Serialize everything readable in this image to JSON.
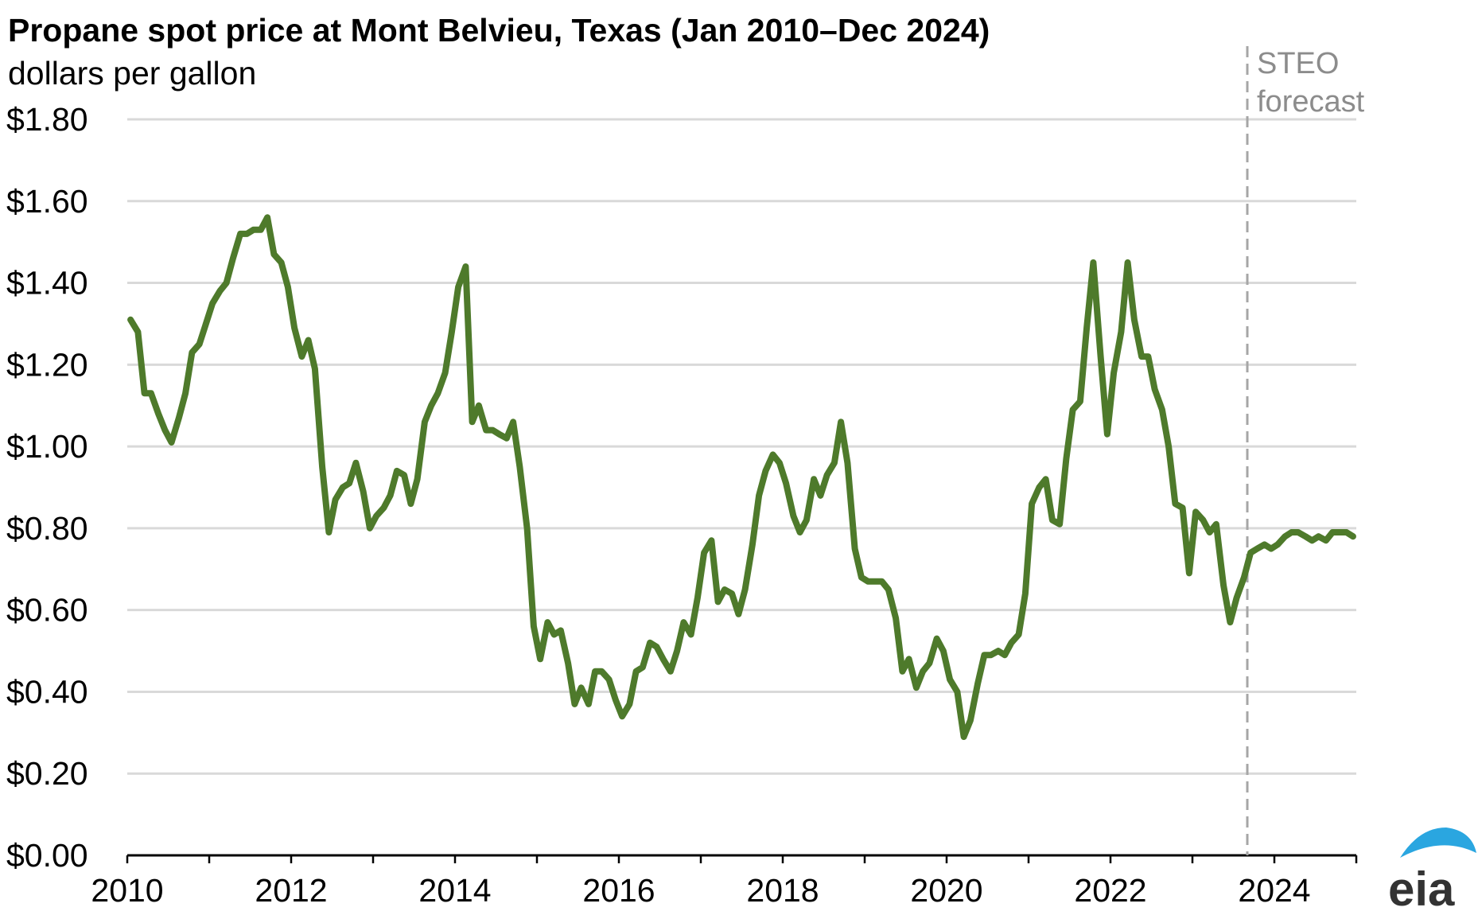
{
  "chart_data": {
    "type": "line",
    "title": "Propane spot price at Mont Belvieu, Texas (Jan 2010–Dec 2024)",
    "subtitle": "dollars per gallon",
    "x_range": [
      2010.0,
      2025.0
    ],
    "x_ticks": [
      2010,
      2012,
      2014,
      2016,
      2018,
      2020,
      2022,
      2024
    ],
    "x_tick_labels": [
      "2010",
      "2012",
      "2014",
      "2016",
      "2018",
      "2020",
      "2022",
      "2024"
    ],
    "ylim": [
      0,
      1.8
    ],
    "y_ticks": [
      0,
      0.2,
      0.4,
      0.6,
      0.8,
      1.0,
      1.2,
      1.4,
      1.6,
      1.8
    ],
    "y_tick_labels": [
      "$0.00",
      "$0.20",
      "$0.40",
      "$0.60",
      "$0.80",
      "$1.00",
      "$1.20",
      "$1.40",
      "$1.60",
      "$1.80"
    ],
    "grid": "horizontal",
    "forecast_start": 2023.67,
    "forecast_label": [
      "STEO",
      "forecast"
    ],
    "series": [
      {
        "color": "#4e7a2b",
        "x": [
          2010.04,
          2010.13,
          2010.21,
          2010.29,
          2010.38,
          2010.46,
          2010.54,
          2010.63,
          2010.71,
          2010.79,
          2010.88,
          2010.96,
          2011.04,
          2011.13,
          2011.21,
          2011.29,
          2011.38,
          2011.46,
          2011.54,
          2011.63,
          2011.71,
          2011.79,
          2011.88,
          2011.96,
          2012.04,
          2012.13,
          2012.21,
          2012.29,
          2012.38,
          2012.46,
          2012.54,
          2012.63,
          2012.71,
          2012.79,
          2012.88,
          2012.96,
          2013.04,
          2013.13,
          2013.21,
          2013.29,
          2013.38,
          2013.46,
          2013.54,
          2013.63,
          2013.71,
          2013.79,
          2013.88,
          2013.96,
          2014.04,
          2014.13,
          2014.21,
          2014.29,
          2014.38,
          2014.46,
          2014.54,
          2014.63,
          2014.71,
          2014.79,
          2014.88,
          2014.96,
          2015.04,
          2015.13,
          2015.21,
          2015.29,
          2015.38,
          2015.46,
          2015.54,
          2015.63,
          2015.71,
          2015.79,
          2015.88,
          2015.96,
          2016.04,
          2016.13,
          2016.21,
          2016.29,
          2016.38,
          2016.46,
          2016.54,
          2016.63,
          2016.71,
          2016.79,
          2016.88,
          2016.96,
          2017.04,
          2017.13,
          2017.21,
          2017.29,
          2017.38,
          2017.46,
          2017.54,
          2017.63,
          2017.71,
          2017.79,
          2017.88,
          2017.96,
          2018.04,
          2018.13,
          2018.21,
          2018.29,
          2018.38,
          2018.46,
          2018.54,
          2018.63,
          2018.71,
          2018.79,
          2018.88,
          2018.96,
          2019.04,
          2019.13,
          2019.21,
          2019.29,
          2019.38,
          2019.46,
          2019.54,
          2019.63,
          2019.71,
          2019.79,
          2019.88,
          2019.96,
          2020.04,
          2020.13,
          2020.21,
          2020.29,
          2020.38,
          2020.46,
          2020.54,
          2020.63,
          2020.71,
          2020.79,
          2020.88,
          2020.96,
          2021.04,
          2021.13,
          2021.21,
          2021.29,
          2021.38,
          2021.46,
          2021.54,
          2021.63,
          2021.71,
          2021.79,
          2021.88,
          2021.96,
          2022.04,
          2022.13,
          2022.21,
          2022.29,
          2022.38,
          2022.46,
          2022.54,
          2022.63,
          2022.71,
          2022.79,
          2022.88,
          2022.96,
          2023.04,
          2023.13,
          2023.21,
          2023.29,
          2023.38,
          2023.46,
          2023.54,
          2023.63,
          2023.71,
          2023.79,
          2023.88,
          2023.96,
          2024.04,
          2024.13,
          2024.21,
          2024.29,
          2024.38,
          2024.46,
          2024.54,
          2024.63,
          2024.71,
          2024.79,
          2024.88,
          2024.96
        ],
        "y": [
          1.31,
          1.28,
          1.13,
          1.13,
          1.08,
          1.04,
          1.01,
          1.07,
          1.13,
          1.23,
          1.25,
          1.3,
          1.35,
          1.38,
          1.4,
          1.46,
          1.52,
          1.52,
          1.53,
          1.53,
          1.56,
          1.47,
          1.45,
          1.39,
          1.29,
          1.22,
          1.26,
          1.19,
          0.95,
          0.79,
          0.87,
          0.9,
          0.91,
          0.96,
          0.89,
          0.8,
          0.83,
          0.85,
          0.88,
          0.94,
          0.93,
          0.86,
          0.92,
          1.06,
          1.1,
          1.13,
          1.18,
          1.28,
          1.39,
          1.44,
          1.06,
          1.1,
          1.04,
          1.04,
          1.03,
          1.02,
          1.06,
          0.95,
          0.8,
          0.56,
          0.48,
          0.57,
          0.54,
          0.55,
          0.47,
          0.37,
          0.41,
          0.37,
          0.45,
          0.45,
          0.43,
          0.38,
          0.34,
          0.37,
          0.45,
          0.46,
          0.52,
          0.51,
          0.48,
          0.45,
          0.5,
          0.57,
          0.54,
          0.63,
          0.74,
          0.77,
          0.62,
          0.65,
          0.64,
          0.59,
          0.65,
          0.76,
          0.88,
          0.94,
          0.98,
          0.96,
          0.91,
          0.83,
          0.79,
          0.82,
          0.92,
          0.88,
          0.93,
          0.96,
          1.06,
          0.96,
          0.75,
          0.68,
          0.67,
          0.67,
          0.67,
          0.65,
          0.58,
          0.45,
          0.48,
          0.41,
          0.45,
          0.47,
          0.53,
          0.5,
          0.43,
          0.4,
          0.29,
          0.33,
          0.42,
          0.49,
          0.49,
          0.5,
          0.49,
          0.52,
          0.54,
          0.64,
          0.86,
          0.9,
          0.92,
          0.82,
          0.81,
          0.97,
          1.09,
          1.11,
          1.29,
          1.45,
          1.22,
          1.03,
          1.18,
          1.28,
          1.45,
          1.31,
          1.22,
          1.22,
          1.14,
          1.09,
          1.0,
          0.86,
          0.85,
          0.69,
          0.84,
          0.82,
          0.79,
          0.81,
          0.66,
          0.57,
          0.63,
          0.68,
          0.74,
          0.75,
          0.76,
          0.75,
          0.76,
          0.78,
          0.79,
          0.79,
          0.78,
          0.77,
          0.78,
          0.77,
          0.79,
          0.79,
          0.79,
          0.78
        ]
      }
    ]
  }
}
